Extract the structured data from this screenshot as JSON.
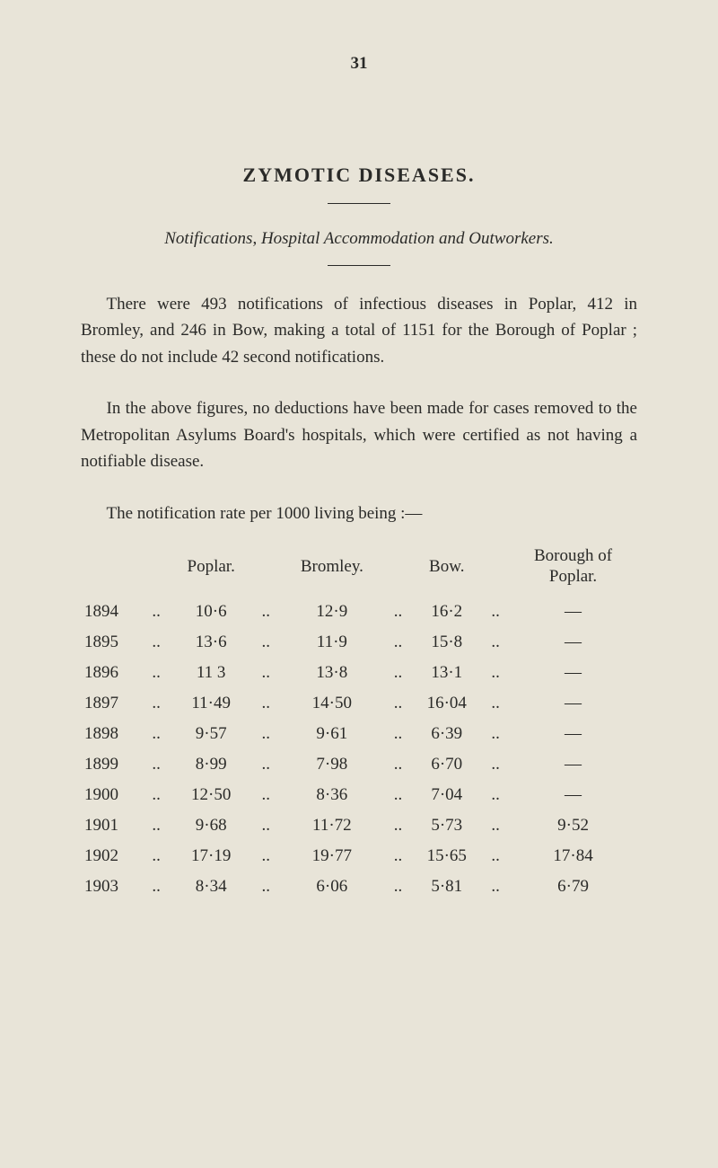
{
  "page_number": "31",
  "section_title": "ZYMOTIC DISEASES.",
  "subtitle_italic_1": "Notifications",
  "subtitle_roman_1": ", ",
  "subtitle_italic_2": "Hospital Accommodation and Outworkers.",
  "para1": "There were 493 notifications of infectious diseases in Poplar, 412 in Bromley, and 246 in Bow, making a total of 1151 for the Borough of Poplar ; these do not include 42 second notifications.",
  "para2": "In the above figures, no deductions have been made for cases removed to the Metropolitan Asylums Board's hospitals, which were certified as not having a notifiable disease.",
  "table_intro": "The notification rate per 1000 living being :—",
  "headers": {
    "poplar": "Poplar.",
    "bromley": "Bromley.",
    "bow": "Bow.",
    "borough_line1": "Borough of",
    "borough_line2": "Poplar."
  },
  "dots": "..",
  "dash": "—",
  "rows": [
    {
      "year": "1894",
      "poplar": "10·6",
      "bromley": "12·9",
      "bow": "16·2",
      "borough": "—"
    },
    {
      "year": "1895",
      "poplar": "13·6",
      "bromley": "11·9",
      "bow": "15·8",
      "borough": "—"
    },
    {
      "year": "1896",
      "poplar": "11 3",
      "bromley": "13·8",
      "bow": "13·1",
      "borough": "—"
    },
    {
      "year": "1897",
      "poplar": "11·49",
      "bromley": "14·50",
      "bow": "16·04",
      "borough": "—"
    },
    {
      "year": "1898",
      "poplar": "9·57",
      "bromley": "9·61",
      "bow": "6·39",
      "borough": "—"
    },
    {
      "year": "1899",
      "poplar": "8·99",
      "bromley": "7·98",
      "bow": "6·70",
      "borough": "—"
    },
    {
      "year": "1900",
      "poplar": "12·50",
      "bromley": "8·36",
      "bow": "7·04",
      "borough": "—"
    },
    {
      "year": "1901",
      "poplar": "9·68",
      "bromley": "11·72",
      "bow": "5·73",
      "borough": "9·52"
    },
    {
      "year": "1902",
      "poplar": "17·19",
      "bromley": "19·77",
      "bow": "15·65",
      "borough": "17·84"
    },
    {
      "year": "1903",
      "poplar": "8·34",
      "bromley": "6·06",
      "bow": "5·81",
      "borough": "6·79"
    }
  ]
}
